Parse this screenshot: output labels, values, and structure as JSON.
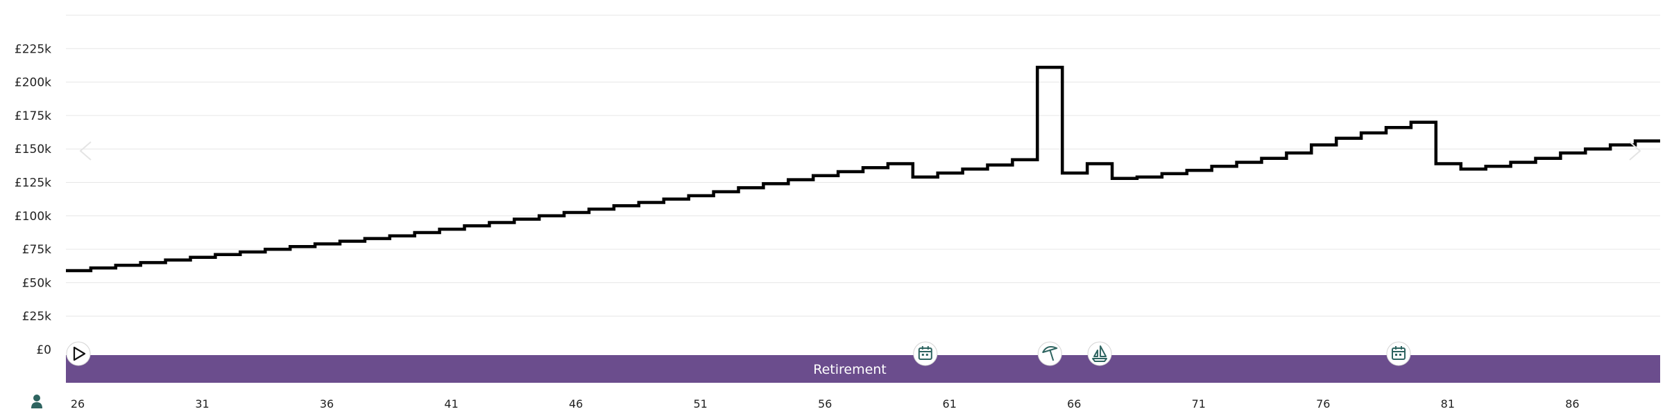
{
  "chart_data": {
    "type": "line",
    "step": true,
    "ylim": [
      0,
      250000
    ],
    "yticks": [
      {
        "value": 0,
        "label": "£0"
      },
      {
        "value": 25000,
        "label": "£25k"
      },
      {
        "value": 50000,
        "label": "£50k"
      },
      {
        "value": 75000,
        "label": "£75k"
      },
      {
        "value": 100000,
        "label": "£100k"
      },
      {
        "value": 125000,
        "label": "£125k"
      },
      {
        "value": 150000,
        "label": "£150k"
      },
      {
        "value": 175000,
        "label": "£175k"
      },
      {
        "value": 200000,
        "label": "£200k"
      },
      {
        "value": 225000,
        "label": "£225k"
      }
    ],
    "xlim": [
      26,
      90
    ],
    "xticks": [
      "26",
      "31",
      "36",
      "41",
      "46",
      "51",
      "56",
      "61",
      "66",
      "71",
      "76",
      "81",
      "86"
    ],
    "grid": true,
    "series": [
      {
        "x": [
          26,
          27,
          28,
          29,
          30,
          31,
          32,
          33,
          34,
          35,
          36,
          37,
          38,
          39,
          40,
          41,
          42,
          43,
          44,
          45,
          46,
          47,
          48,
          49,
          50,
          51,
          52,
          53,
          54,
          55,
          56,
          57,
          58,
          59,
          60,
          61,
          62,
          63,
          64,
          65,
          66,
          67,
          68,
          69,
          70,
          71,
          72,
          73,
          74,
          75,
          76,
          77,
          78,
          79,
          80,
          81,
          82,
          83,
          84,
          85,
          86,
          87,
          88,
          89
        ],
        "values": [
          59000,
          61000,
          63000,
          65000,
          67000,
          69000,
          71000,
          73000,
          75000,
          77000,
          79000,
          81000,
          83000,
          85000,
          87500,
          90000,
          92500,
          95000,
          97500,
          100000,
          102500,
          105000,
          107500,
          110000,
          112500,
          115000,
          118000,
          121000,
          124000,
          127000,
          130000,
          133000,
          136000,
          139000,
          129000,
          132000,
          135000,
          138000,
          142000,
          211000,
          132000,
          139000,
          128000,
          129000,
          131500,
          134000,
          137000,
          140000,
          143000,
          147000,
          153000,
          158000,
          162000,
          166000,
          170000,
          139000,
          135000,
          137000,
          140000,
          143000,
          147000,
          150000,
          153000,
          156000
        ]
      }
    ]
  },
  "timeline": {
    "band_label": "Retirement",
    "band_color": "#6b4d8d",
    "icon_color": "#2e6460",
    "markers": [
      {
        "age": 26.5,
        "icon": "play-icon"
      },
      {
        "age": 60.5,
        "icon": "calendar-icon"
      },
      {
        "age": 65.5,
        "icon": "beach-umbrella-icon"
      },
      {
        "age": 67.5,
        "icon": "sailboat-icon"
      },
      {
        "age": 79.5,
        "icon": "calendar-icon"
      }
    ],
    "person_icon": "person-icon"
  },
  "nav": {
    "prev_icon": "chevron-left-icon",
    "next_icon": "chevron-right-icon"
  }
}
